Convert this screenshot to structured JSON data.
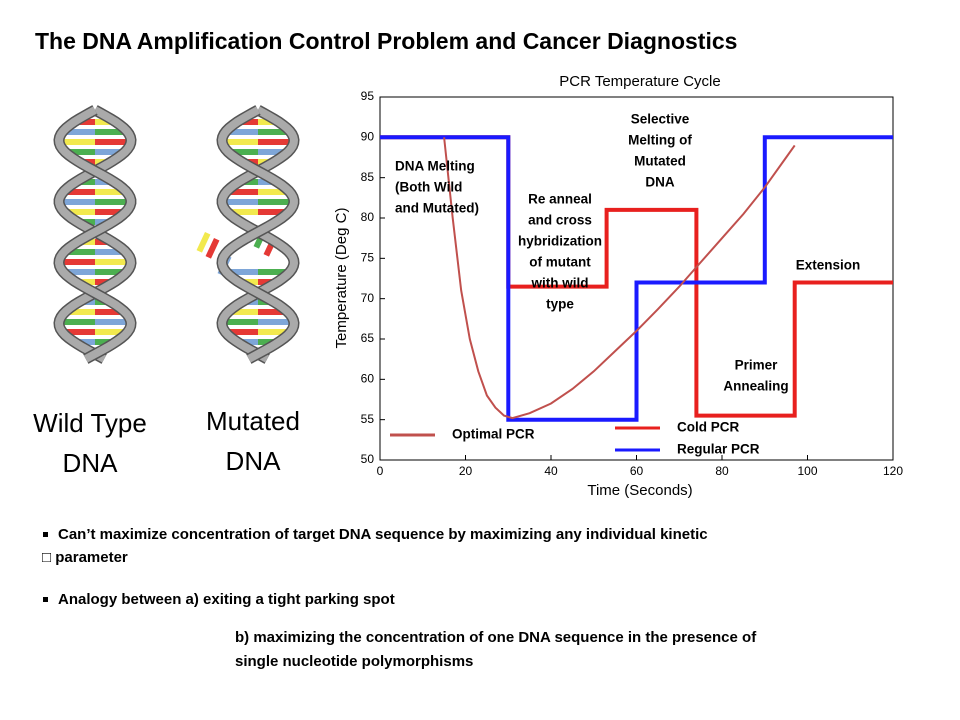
{
  "title": "The DNA Amplification Control Problem and Cancer Diagnostics",
  "dna_labels": [
    [
      "Wild Type",
      "DNA"
    ],
    [
      "Mutated",
      "DNA"
    ]
  ],
  "chart_data": {
    "type": "line",
    "title": "PCR Temperature Cycle",
    "x_label": "Time (Seconds)",
    "y_label": "Temperature (Deg C)",
    "xlim": [
      0,
      120
    ],
    "xticks": [
      0,
      20,
      40,
      60,
      80,
      100,
      120
    ],
    "ylim": [
      50,
      95
    ],
    "yticks": [
      50,
      55,
      60,
      65,
      70,
      75,
      80,
      85,
      90,
      95
    ],
    "grid": false,
    "series": [
      {
        "name": "Optimal PCR",
        "color": "#c0504d",
        "x": [
          15,
          17,
          19,
          21,
          23,
          25,
          27,
          29,
          31,
          35,
          40,
          45,
          50,
          55,
          60,
          65,
          70,
          75,
          80,
          85,
          90,
          95,
          97
        ],
        "values": [
          90,
          80,
          71,
          65,
          61,
          58,
          56.5,
          55.5,
          55.2,
          55.8,
          57,
          58.8,
          61,
          63.5,
          66,
          68.7,
          71.5,
          74.5,
          77.5,
          80.5,
          83.8,
          87.5,
          89
        ]
      },
      {
        "name": "Cold PCR",
        "color": "#e8201e",
        "x": [
          0,
          30,
          30,
          53,
          53,
          74,
          74,
          97,
          97,
          120
        ],
        "values": [
          90,
          90,
          71.5,
          71.5,
          81,
          81,
          55.5,
          55.5,
          72,
          72
        ]
      },
      {
        "name": "Regular PCR",
        "color": "#1a1aff",
        "x": [
          0,
          30,
          30,
          60,
          60,
          90,
          90,
          120
        ],
        "values": [
          90,
          90,
          55,
          55,
          72,
          72,
          90,
          90
        ]
      }
    ],
    "annotations": [
      [
        "DNA Melting",
        "(Both Wild",
        "and Mutated)"
      ],
      [
        "Selective",
        "Melting of",
        "Mutated",
        "DNA"
      ],
      [
        "Re anneal",
        "and cross",
        "hybridization",
        "of mutant",
        "with wild",
        "type"
      ],
      [
        "Extension"
      ],
      [
        "Primer",
        "Annealing"
      ]
    ]
  },
  "bullets": [
    [
      "Can’t maximize concentration of target DNA sequence by maximizing any individual kinetic",
      "□ parameter"
    ],
    [
      "Analogy between  a) exiting a tight parking spot"
    ]
  ],
  "continuation": [
    "b) maximizing the concentration of one DNA sequence in the presence of",
    "single nucleotide polymorphisms"
  ]
}
